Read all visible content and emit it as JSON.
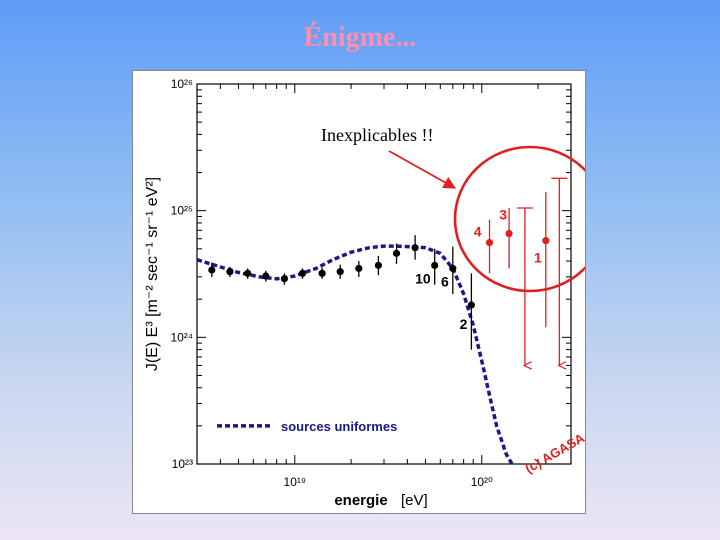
{
  "slide": {
    "title": "Énigme..."
  },
  "annotation": {
    "text": "Inexplicables !!"
  },
  "chart_data": {
    "type": "scatter",
    "xlabel": "energie",
    "xlabel_unit": "[eV]",
    "ylabel": "J(E) E³ [m⁻² sec⁻¹ sr⁻¹ eV²]",
    "xscale": "log",
    "yscale": "log",
    "xlim": [
      3e+18,
      3e+20
    ],
    "ylim": [
      1e+23,
      1e+26
    ],
    "x_tick_labels": [
      "10¹⁹",
      "10²⁰"
    ],
    "y_tick_labels": [
      "10²³",
      "10²⁴",
      "10²⁵",
      "10²⁶"
    ],
    "legend": [
      "sources uniformes"
    ],
    "watermark": "(c) AGASA",
    "colors": {
      "data": "#000000",
      "outliers": "#e02020",
      "model": "#1a1a8c",
      "highlight_circle": "#e02020",
      "arrow": "#e02020"
    },
    "series": [
      {
        "name": "data",
        "points": [
          {
            "x": 3.6e+18,
            "y": 3.4e+24,
            "lo": 3e+24,
            "hi": 3.9e+24
          },
          {
            "x": 4.5e+18,
            "y": 3.3e+24,
            "lo": 3e+24,
            "hi": 3.6e+24
          },
          {
            "x": 5.6e+18,
            "y": 3.2e+24,
            "lo": 2.9e+24,
            "hi": 3.5e+24
          },
          {
            "x": 7e+18,
            "y": 3.05e+24,
            "lo": 2.75e+24,
            "hi": 3.35e+24
          },
          {
            "x": 8.8e+18,
            "y": 2.9e+24,
            "lo": 2.6e+24,
            "hi": 3.2e+24
          },
          {
            "x": 1.1e+19,
            "y": 3.2e+24,
            "lo": 2.9e+24,
            "hi": 3.5e+24
          },
          {
            "x": 1.4e+19,
            "y": 3.2e+24,
            "lo": 2.9e+24,
            "hi": 3.55e+24
          },
          {
            "x": 1.75e+19,
            "y": 3.3e+24,
            "lo": 2.9e+24,
            "hi": 3.75e+24
          },
          {
            "x": 2.2e+19,
            "y": 3.5e+24,
            "lo": 3e+24,
            "hi": 4e+24
          },
          {
            "x": 2.8e+19,
            "y": 3.7e+24,
            "lo": 3.1e+24,
            "hi": 4.4e+24
          },
          {
            "x": 3.5e+19,
            "y": 4.6e+24,
            "lo": 3.8e+24,
            "hi": 5.5e+24
          },
          {
            "x": 4.4e+19,
            "y": 5.1e+24,
            "lo": 4.1e+24,
            "hi": 6.4e+24
          },
          {
            "x": 5.6e+19,
            "y": 3.7e+24,
            "lo": 2.6e+24,
            "hi": 5e+24,
            "label": "10"
          },
          {
            "x": 7e+19,
            "y": 3.5e+24,
            "lo": 2.2e+24,
            "hi": 5.2e+24,
            "label": "6"
          },
          {
            "x": 8.8e+19,
            "y": 1.8e+24,
            "lo": 8e+23,
            "hi": 3.2e+24,
            "label": "2"
          }
        ]
      },
      {
        "name": "outliers",
        "points": [
          {
            "x": 1.1e+20,
            "y": 5.6e+24,
            "lo": 3.2e+24,
            "hi": 8.5e+24,
            "label": "4"
          },
          {
            "x": 1.4e+20,
            "y": 6.6e+24,
            "lo": 3.5e+24,
            "hi": 1.05e+25,
            "label": "3"
          },
          {
            "x": 2.2e+20,
            "y": 5.8e+24,
            "lo": 1.2e+24,
            "hi": 1.4e+25,
            "label": "1"
          }
        ],
        "upper_limits": [
          {
            "x": 1.7e+20,
            "y_top": 1.05e+25,
            "y_bottom": 6e+23
          },
          {
            "x": 2.6e+20,
            "y_top": 1.8e+25,
            "y_bottom": 6e+23
          }
        ]
      },
      {
        "name": "sources uniformes",
        "style": "dashed",
        "x": [
          3e+18,
          4e+18,
          5e+18,
          6.5e+18,
          8e+18,
          1e+19,
          1.3e+19,
          1.6e+19,
          2e+19,
          2.5e+19,
          3e+19,
          3.5e+19,
          4e+19,
          5e+19,
          6e+19,
          7e+19,
          8e+19,
          9e+19,
          1e+20,
          1.1e+20,
          1.2e+20,
          1.35e+20,
          1.45e+20
        ],
        "y": [
          4.1e+24,
          3.6e+24,
          3.25e+24,
          3e+24,
          2.9e+24,
          3.05e+24,
          3.5e+24,
          4.1e+24,
          4.7e+24,
          5.1e+24,
          5.25e+24,
          5.25e+24,
          5.2e+24,
          5.1e+24,
          4.6e+24,
          3.5e+24,
          2.2e+24,
          1.25e+24,
          6.5e+23,
          3.5e+23,
          2e+23,
          1.2e+23,
          1e+23
        ]
      }
    ]
  }
}
